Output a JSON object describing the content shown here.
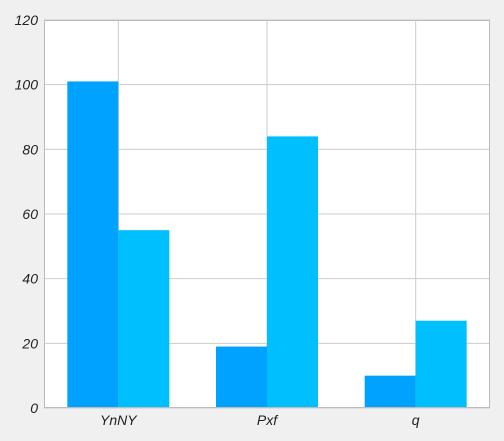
{
  "chart_data": {
    "type": "bar",
    "categories": [
      "YnNY",
      "Pxf",
      "q"
    ],
    "series": [
      {
        "values": [
          101,
          19,
          10
        ],
        "color": "#00a2ff"
      },
      {
        "values": [
          55,
          84,
          27
        ],
        "color": "#00bfff"
      }
    ],
    "title": "",
    "xlabel": "",
    "ylabel": "",
    "ylim": [
      0,
      120
    ],
    "yticks": [
      0,
      20,
      40,
      60,
      80,
      100,
      120
    ],
    "grid": true,
    "legend": "none",
    "plot_background": "#ffffff",
    "grid_color": "#cccccc",
    "axis_color": "#bbbbbb"
  }
}
